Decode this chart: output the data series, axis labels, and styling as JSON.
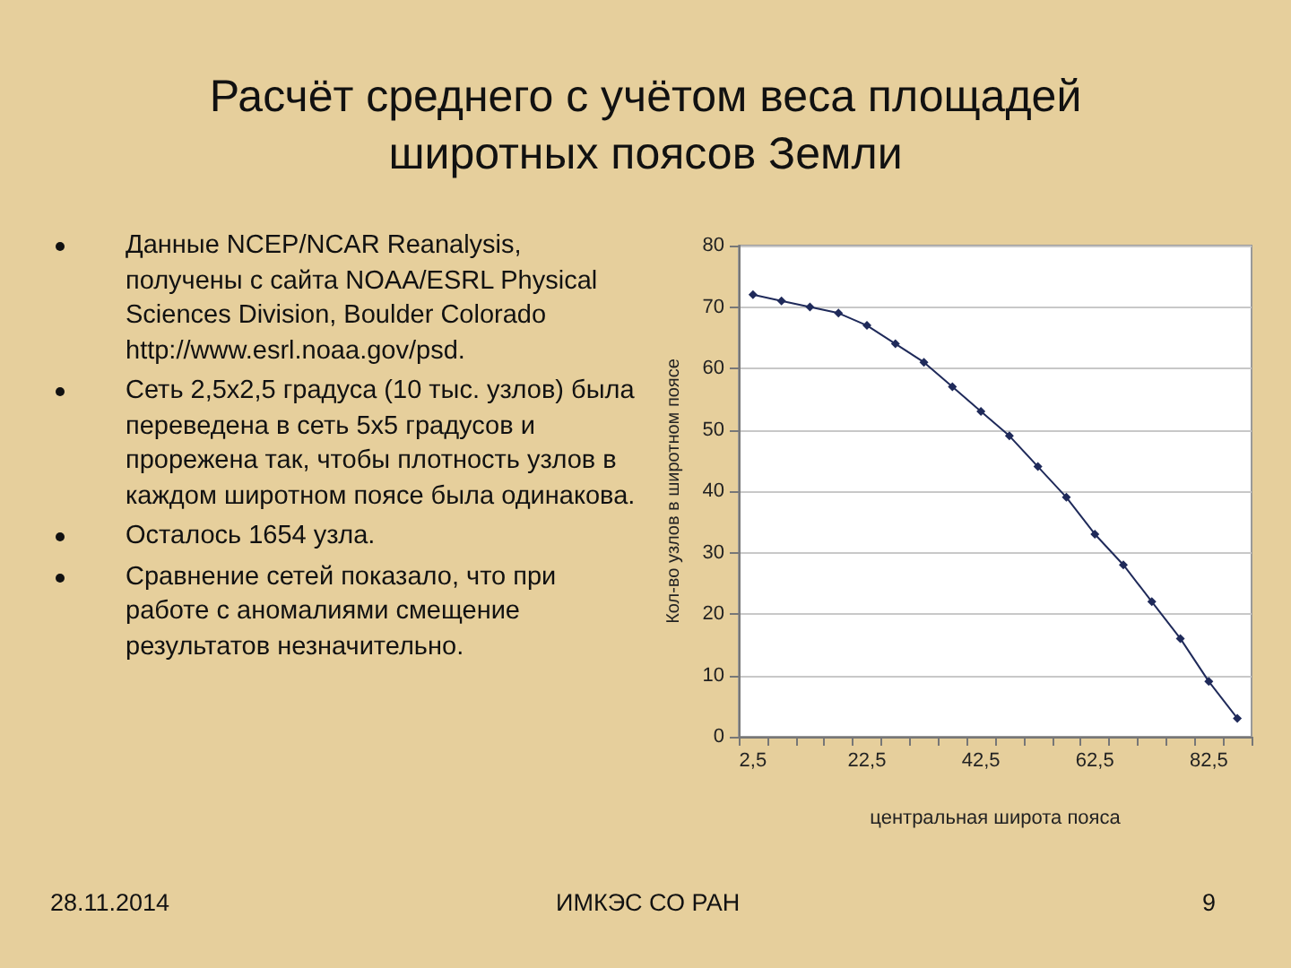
{
  "chart_data": {
    "type": "line",
    "title": "Расчёт среднего с учётом веса площадей широтных поясов Земли",
    "xlabel": "центральная широта пояса",
    "ylabel": "Кол-во узлов в широтном поясе",
    "categories": [
      "2,5",
      null,
      null,
      null,
      "22,5",
      null,
      null,
      null,
      "42,5",
      null,
      null,
      null,
      "62,5",
      null,
      null,
      null,
      "82,5",
      null
    ],
    "series": [
      {
        "color": "#1f2a5a",
        "values": [
          72,
          71,
          70,
          69,
          67,
          64,
          61,
          57,
          53,
          49,
          44,
          39,
          33,
          28,
          22,
          16,
          9,
          3
        ]
      }
    ],
    "ylim": [
      0,
      80
    ],
    "yticks": [
      0,
      10,
      20,
      30,
      40,
      50,
      60,
      70,
      80
    ],
    "grid": "y",
    "marker": "diamond",
    "line_style": "solid",
    "annotations": [
      "Данные NCEP/NCAR  Reanalysis, получены с сайта NOAA/ESRL Physical Sciences Division, Boulder Colorado http://www.esrl.noaa.gov/psd.",
      "Сеть 2,5х2,5 градуса (10 тыс. узлов) была переведена в сеть 5х5 градусов и прорежена так, чтобы плотность узлов в каждом широтном поясе была одинакова.",
      "Осталось 1654 узла.",
      "Сравнение сетей показало, что при работе с аномалиями смещение результатов незначительно.",
      "28.11.2014",
      "ИМКЭС СО РАН",
      "9"
    ]
  }
}
